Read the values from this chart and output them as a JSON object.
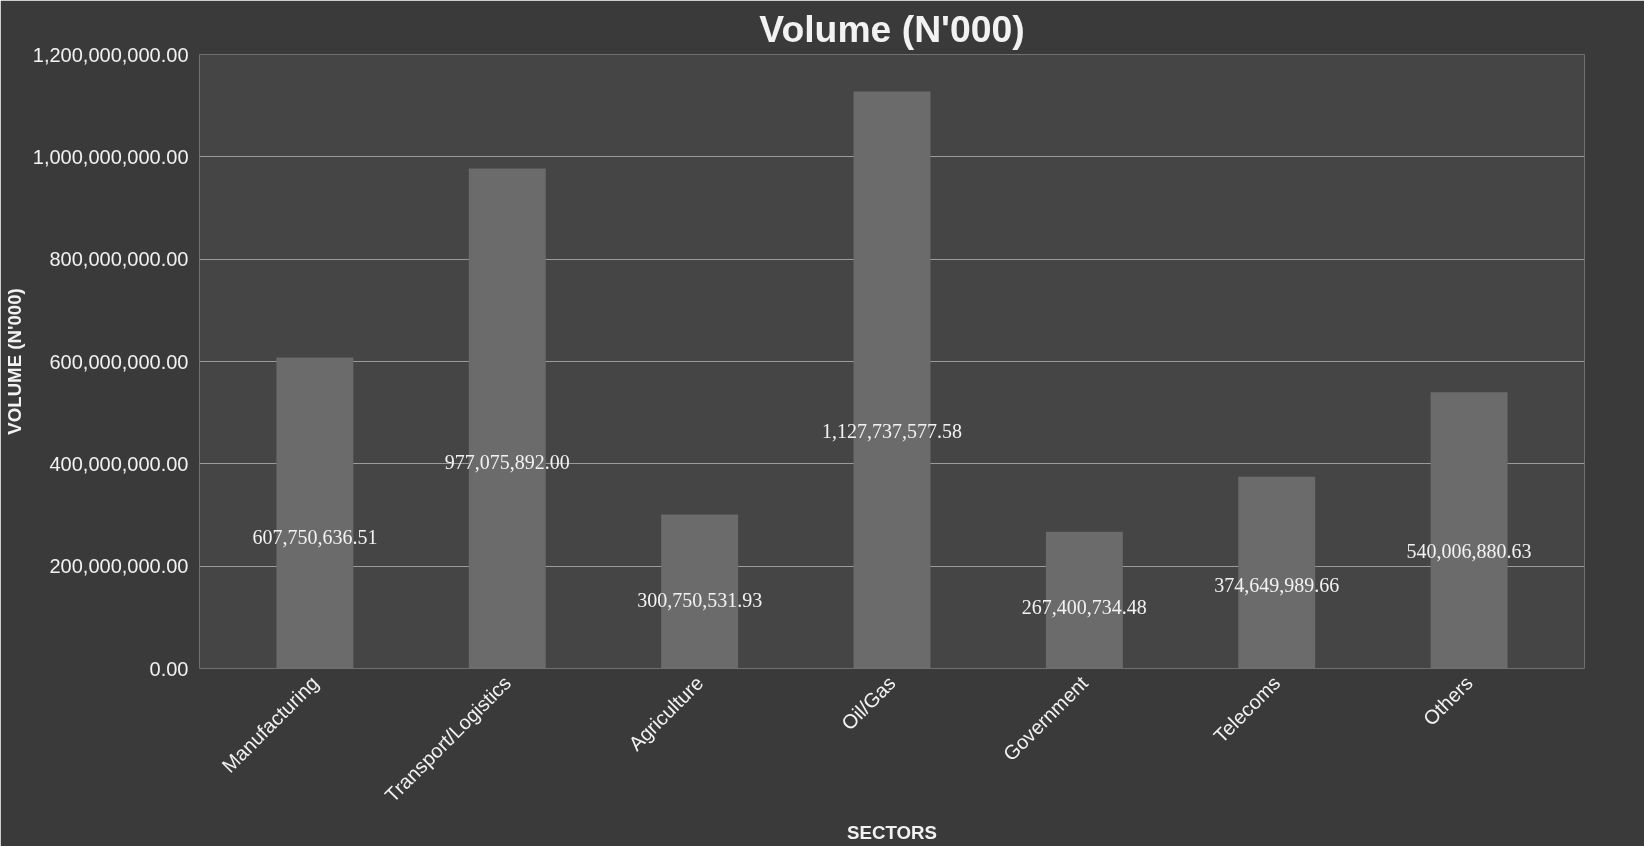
{
  "chart_data": {
    "type": "bar",
    "title": "Volume (N'000)",
    "xlabel": "SECTORS",
    "ylabel": "VOLUME (N'000)",
    "categories": [
      "Manufacturing",
      "Transport/Logistics",
      "Agriculture",
      "Oil/Gas",
      "Government",
      "Telecoms",
      "Others"
    ],
    "values": [
      607750636.51,
      977075892.0,
      300750531.93,
      1127737577.58,
      267400734.48,
      374649989.66,
      540006880.63
    ],
    "color": "#6b6b6b",
    "ylim": [
      0,
      1200000000
    ],
    "yticks": [
      {
        "value": 0,
        "label": "0.00"
      },
      {
        "value": 200000000,
        "label": "200,000,000.00"
      },
      {
        "value": 400000000,
        "label": "400,000,000.00"
      },
      {
        "value": 600000000,
        "label": "600,000,000.00"
      },
      {
        "value": 800000000,
        "label": "800,000,000.00"
      },
      {
        "value": 1000000000,
        "label": "1,000,000,000.00"
      },
      {
        "value": 1200000000,
        "label": "1,200,000,000.00"
      }
    ],
    "value_labels": [
      "607,750,636.51",
      "977,075,892.00",
      "300,750,531.93",
      "1,127,737,577.58",
      "267,400,734.48",
      "374,649,989.66",
      "540,006,880.63"
    ],
    "grid": "y"
  }
}
